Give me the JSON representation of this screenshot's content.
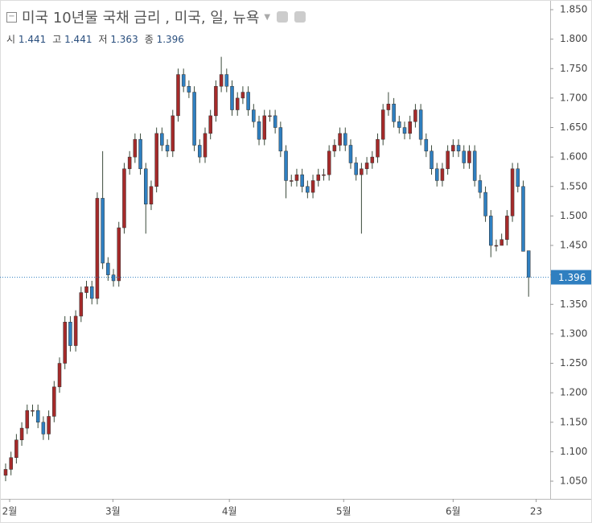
{
  "chart_data": {
    "type": "candlestick",
    "title": "미국 10년물 국채 금리 , 미국, 일, 뉴욕",
    "ohlc_labels": [
      "시",
      "고",
      "저",
      "종"
    ],
    "up_color": "#a52a2a",
    "down_color": "#2f7fc0",
    "grid": false,
    "open": [
      1.06,
      1.07,
      1.09,
      1.12,
      1.14,
      1.17,
      1.17,
      1.15,
      1.13,
      1.16,
      1.21,
      1.25,
      1.32,
      1.28,
      1.33,
      1.37,
      1.38,
      1.36,
      1.53,
      1.42,
      1.4,
      1.39,
      1.48,
      1.58,
      1.6,
      1.63,
      1.58,
      1.52,
      1.55,
      1.64,
      1.62,
      1.61,
      1.67,
      1.74,
      1.72,
      1.71,
      1.62,
      1.6,
      1.64,
      1.67,
      1.72,
      1.74,
      1.72,
      1.68,
      1.7,
      1.71,
      1.68,
      1.66,
      1.63,
      1.67,
      1.67,
      1.65,
      1.61,
      1.56,
      1.56,
      1.57,
      1.55,
      1.54,
      1.56,
      1.57,
      1.57,
      1.61,
      1.62,
      1.64,
      1.62,
      1.59,
      1.57,
      1.58,
      1.59,
      1.6,
      1.63,
      1.68,
      1.69,
      1.66,
      1.65,
      1.64,
      1.66,
      1.68,
      1.63,
      1.61,
      1.58,
      1.56,
      1.58,
      1.61,
      1.62,
      1.61,
      1.59,
      1.61,
      1.56,
      1.54,
      1.5,
      1.45,
      1.45,
      1.46,
      1.5,
      1.58,
      1.55,
      1.441
    ],
    "high": [
      1.08,
      1.1,
      1.13,
      1.15,
      1.18,
      1.18,
      1.18,
      1.16,
      1.17,
      1.22,
      1.26,
      1.33,
      1.33,
      1.34,
      1.38,
      1.39,
      1.39,
      1.54,
      1.61,
      1.43,
      1.41,
      1.49,
      1.59,
      1.61,
      1.64,
      1.64,
      1.59,
      1.56,
      1.65,
      1.65,
      1.63,
      1.68,
      1.75,
      1.75,
      1.73,
      1.72,
      1.63,
      1.65,
      1.68,
      1.73,
      1.77,
      1.75,
      1.73,
      1.71,
      1.72,
      1.72,
      1.69,
      1.67,
      1.68,
      1.68,
      1.68,
      1.66,
      1.62,
      1.57,
      1.58,
      1.58,
      1.56,
      1.57,
      1.58,
      1.58,
      1.62,
      1.63,
      1.65,
      1.65,
      1.63,
      1.6,
      1.59,
      1.6,
      1.61,
      1.64,
      1.69,
      1.71,
      1.7,
      1.67,
      1.66,
      1.67,
      1.69,
      1.69,
      1.64,
      1.62,
      1.59,
      1.59,
      1.62,
      1.63,
      1.63,
      1.62,
      1.62,
      1.62,
      1.57,
      1.55,
      1.51,
      1.46,
      1.47,
      1.51,
      1.59,
      1.59,
      1.56,
      1.441
    ],
    "low": [
      1.05,
      1.06,
      1.08,
      1.11,
      1.13,
      1.16,
      1.14,
      1.12,
      1.12,
      1.15,
      1.2,
      1.24,
      1.27,
      1.27,
      1.32,
      1.36,
      1.35,
      1.35,
      1.41,
      1.39,
      1.38,
      1.38,
      1.47,
      1.57,
      1.59,
      1.57,
      1.47,
      1.51,
      1.54,
      1.61,
      1.6,
      1.6,
      1.66,
      1.71,
      1.7,
      1.61,
      1.59,
      1.59,
      1.63,
      1.66,
      1.71,
      1.71,
      1.67,
      1.67,
      1.69,
      1.67,
      1.65,
      1.62,
      1.62,
      1.66,
      1.64,
      1.6,
      1.53,
      1.55,
      1.55,
      1.54,
      1.53,
      1.53,
      1.55,
      1.56,
      1.56,
      1.6,
      1.61,
      1.61,
      1.58,
      1.56,
      1.47,
      1.57,
      1.58,
      1.59,
      1.62,
      1.67,
      1.65,
      1.64,
      1.63,
      1.63,
      1.65,
      1.62,
      1.6,
      1.57,
      1.55,
      1.55,
      1.57,
      1.6,
      1.6,
      1.58,
      1.58,
      1.55,
      1.53,
      1.49,
      1.43,
      1.44,
      1.45,
      1.45,
      1.49,
      1.54,
      1.44,
      1.363
    ],
    "close": [
      1.07,
      1.09,
      1.12,
      1.14,
      1.17,
      1.17,
      1.15,
      1.13,
      1.16,
      1.21,
      1.25,
      1.32,
      1.28,
      1.33,
      1.37,
      1.38,
      1.36,
      1.53,
      1.42,
      1.4,
      1.39,
      1.48,
      1.58,
      1.6,
      1.63,
      1.58,
      1.52,
      1.55,
      1.64,
      1.62,
      1.61,
      1.67,
      1.74,
      1.72,
      1.71,
      1.62,
      1.6,
      1.64,
      1.67,
      1.72,
      1.74,
      1.72,
      1.68,
      1.7,
      1.71,
      1.68,
      1.66,
      1.63,
      1.67,
      1.67,
      1.65,
      1.61,
      1.56,
      1.56,
      1.57,
      1.55,
      1.54,
      1.56,
      1.57,
      1.57,
      1.61,
      1.62,
      1.64,
      1.62,
      1.59,
      1.57,
      1.58,
      1.59,
      1.6,
      1.63,
      1.68,
      1.69,
      1.66,
      1.65,
      1.64,
      1.66,
      1.68,
      1.63,
      1.61,
      1.58,
      1.56,
      1.58,
      1.61,
      1.62,
      1.61,
      1.59,
      1.61,
      1.56,
      1.54,
      1.5,
      1.45,
      1.45,
      1.46,
      1.5,
      1.58,
      1.55,
      1.44,
      1.396
    ],
    "xlim": [
      -1.04,
      101.0
    ],
    "xticks": [
      {
        "value": 0.75,
        "label": "2월"
      },
      {
        "value": 19.9,
        "label": "3월"
      },
      {
        "value": 41.5,
        "label": "4월"
      },
      {
        "value": 62.7,
        "label": "5월"
      },
      {
        "value": 83.0,
        "label": "6월"
      },
      {
        "value": 98.4,
        "label": "23"
      }
    ],
    "ylim": [
      1.02,
      1.8664
    ],
    "yticks": [
      {
        "value": 1.05,
        "label": "1.050"
      },
      {
        "value": 1.1,
        "label": "1.100"
      },
      {
        "value": 1.15,
        "label": "1.150"
      },
      {
        "value": 1.2,
        "label": "1.200"
      },
      {
        "value": 1.25,
        "label": "1.250"
      },
      {
        "value": 1.3,
        "label": "1.300"
      },
      {
        "value": 1.35,
        "label": "1.350"
      },
      {
        "value": 1.4,
        "label": "1.400"
      },
      {
        "value": 1.45,
        "label": "1.450"
      },
      {
        "value": 1.5,
        "label": "1.500"
      },
      {
        "value": 1.55,
        "label": "1.550"
      },
      {
        "value": 1.6,
        "label": "1.600"
      },
      {
        "value": 1.65,
        "label": "1.650"
      },
      {
        "value": 1.7,
        "label": "1.700"
      },
      {
        "value": 1.75,
        "label": "1.750"
      },
      {
        "value": 1.8,
        "label": "1.800"
      },
      {
        "value": 1.85,
        "label": "1.850"
      }
    ]
  }
}
